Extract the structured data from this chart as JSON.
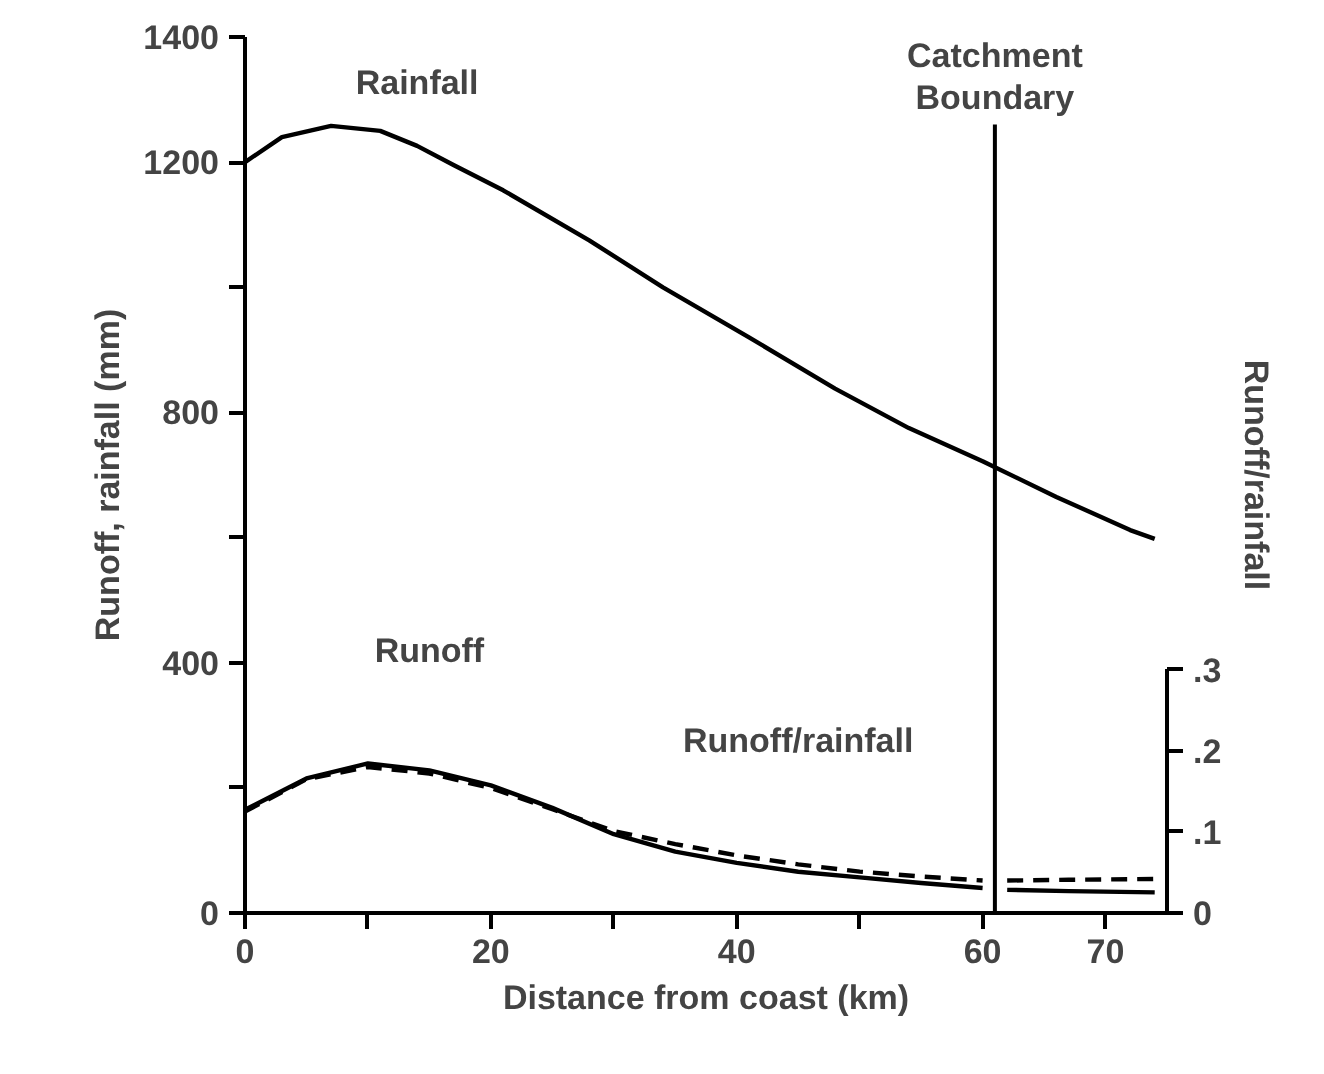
{
  "chart_data": {
    "type": "line",
    "xlabel": "Distance from coast (km)",
    "ylabel": "Runoff, rainfall (mm)",
    "y2label": "Runoff/rainfall",
    "xlim": [
      0,
      75
    ],
    "ylim": [
      0,
      1400
    ],
    "y2lim": [
      0,
      1.08
    ],
    "xticks": [
      0,
      {
        "value": 10,
        "label": null
      },
      20,
      {
        "value": 30,
        "label": null
      },
      40,
      {
        "value": 50,
        "label": null
      },
      60,
      70
    ],
    "yticks": [
      0,
      {
        "value": 200,
        "label": null
      },
      400,
      {
        "value": 600,
        "label": null
      },
      800,
      {
        "value": 1000,
        "label": null
      },
      1200,
      1400
    ],
    "y2ticks": [
      0,
      {
        "value": 0.1,
        "label": ".1"
      },
      {
        "value": 0.2,
        "label": ".2"
      },
      {
        "value": 0.3,
        "label": ".3"
      }
    ],
    "line_style": "solid",
    "series": [
      {
        "name": "Rainfall",
        "color": "#000000",
        "x": [
          0,
          3,
          7,
          11,
          14,
          17,
          21,
          28,
          34,
          41,
          48,
          54,
          60,
          66,
          72,
          74
        ],
        "values": [
          1200,
          1240,
          1258,
          1250,
          1226,
          1195,
          1155,
          1075,
          1000,
          920,
          838,
          775,
          722,
          665,
          612,
          598
        ]
      },
      {
        "name": "Runoff",
        "color": "#000000",
        "x": [
          0,
          5,
          10,
          15,
          20,
          25,
          30,
          35,
          40,
          45,
          50,
          55,
          60,
          61,
          62,
          67,
          74
        ],
        "values": [
          165,
          215,
          239,
          228,
          204,
          168,
          126,
          98,
          80,
          66,
          57,
          48,
          40,
          null,
          37,
          35,
          33
        ]
      },
      {
        "name": "Runoff/rainfall",
        "color": "#000000",
        "axis": "y2",
        "line_style": "dashed",
        "x": [
          0,
          5,
          10,
          15,
          20,
          25,
          30,
          35,
          40,
          45,
          50,
          55,
          60,
          61,
          62,
          67,
          74
        ],
        "values": [
          0.125,
          0.165,
          0.18,
          0.172,
          0.154,
          0.128,
          0.101,
          0.085,
          0.071,
          0.06,
          0.051,
          0.045,
          0.04,
          null,
          0.04,
          0.041,
          0.042
        ]
      }
    ],
    "ref_lines": [
      {
        "axis": "x",
        "value": 61,
        "label": "Catchment\nBoundary",
        "color": "#000000"
      }
    ]
  }
}
